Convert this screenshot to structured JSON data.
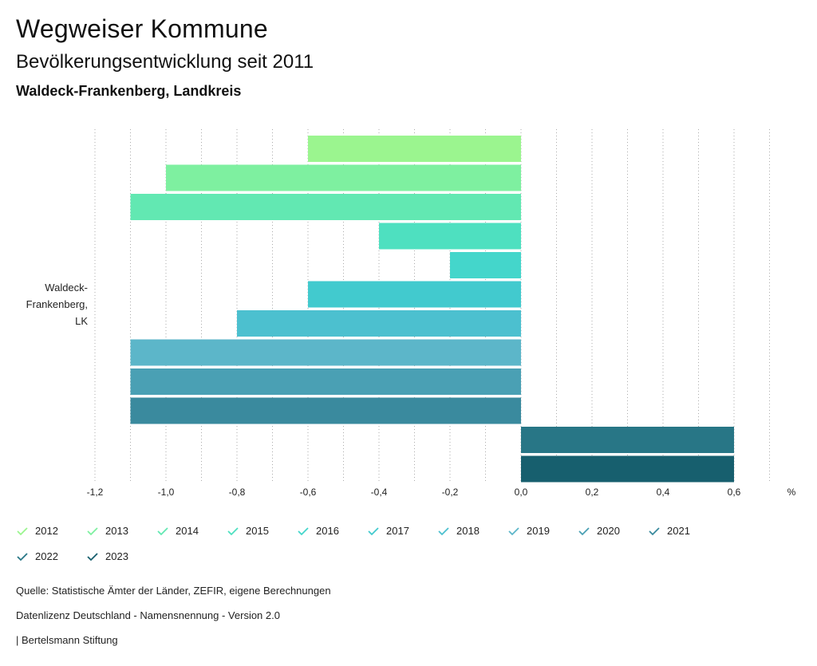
{
  "header": {
    "title": "Wegweiser Kommune",
    "subtitle": "Bevölkerungsentwicklung seit 2011",
    "region": "Waldeck-Frankenberg, Landkreis"
  },
  "chart_data": {
    "type": "bar",
    "orientation": "horizontal",
    "category_label": [
      "Waldeck-",
      "Frankenberg,",
      "LK"
    ],
    "unit": "%",
    "xlim": [
      -1.2,
      0.6
    ],
    "xticks": [
      "-1,2",
      "-1,0",
      "-0,8",
      "-0,6",
      "-0,4",
      "-0,2",
      "0,0",
      "0,2",
      "0,4",
      "0,6"
    ],
    "grid": "vertical-dotted",
    "series": [
      {
        "name": "2012",
        "value": -0.6,
        "color": "#9bf58f"
      },
      {
        "name": "2013",
        "value": -1.0,
        "color": "#7ef0a0"
      },
      {
        "name": "2014",
        "value": -1.1,
        "color": "#62e8b2"
      },
      {
        "name": "2015",
        "value": -0.4,
        "color": "#4ee0c0"
      },
      {
        "name": "2016",
        "value": -0.2,
        "color": "#44d6cb"
      },
      {
        "name": "2017",
        "value": -0.6,
        "color": "#42cace"
      },
      {
        "name": "2018",
        "value": -0.8,
        "color": "#4cc0cf"
      },
      {
        "name": "2019",
        "value": -1.1,
        "color": "#5cb6c9"
      },
      {
        "name": "2020",
        "value": -1.1,
        "color": "#4aa0b4"
      },
      {
        "name": "2021",
        "value": -1.1,
        "color": "#3a8a9e"
      },
      {
        "name": "2022",
        "value": 0.6,
        "color": "#287686"
      },
      {
        "name": "2023",
        "value": 0.6,
        "color": "#175f6e"
      }
    ]
  },
  "footer": {
    "source": "Quelle: Statistische Ämter der Länder, ZEFIR, eigene Berechnungen",
    "license": "Datenlizenz Deutschland - Namensnennung - Version 2.0",
    "publisher": "| Bertelsmann Stiftung"
  }
}
